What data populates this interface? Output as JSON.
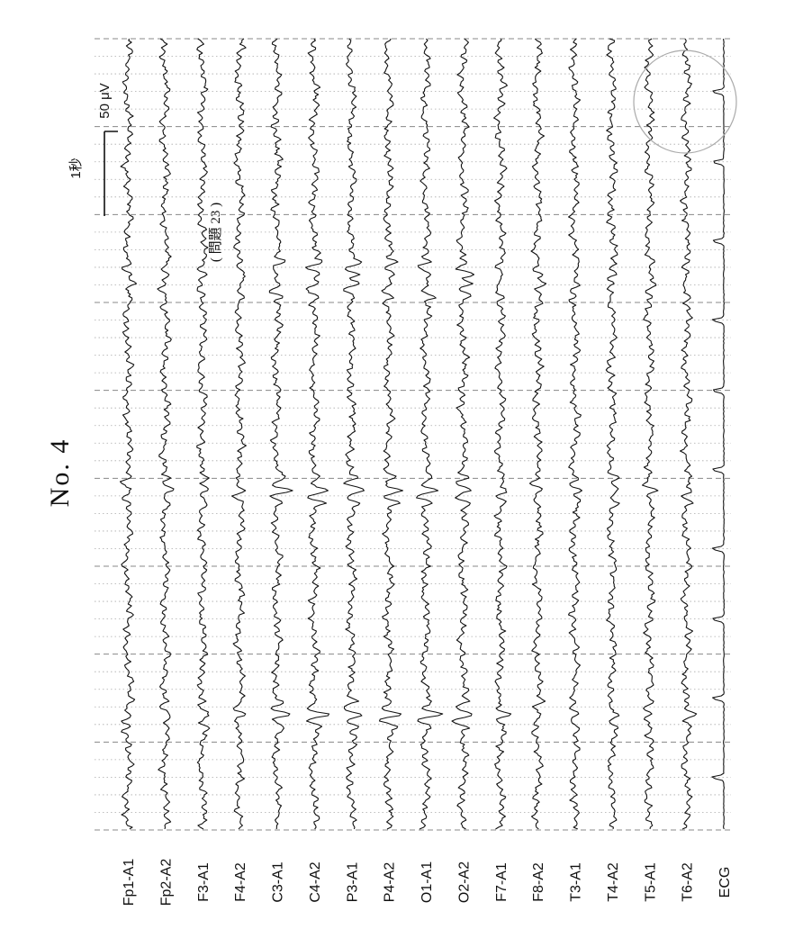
{
  "header": {
    "number_label": "No. 4",
    "problem_label": "( 問題 23 )"
  },
  "scale_bar": {
    "time_label": "1秒",
    "amplitude_label": "50 μV"
  },
  "chart_data": {
    "type": "line",
    "title": "",
    "orientation": "rotated 90° (time runs top to bottom)",
    "x_unit": "s",
    "xlim": [
      0,
      9
    ],
    "y_unit": "μV",
    "major_gridlines_per_second": 1,
    "minor_gridlines_per_second": 5,
    "grid": true,
    "channels": [
      {
        "name": "Fp1-A1",
        "color": "#111111"
      },
      {
        "name": "Fp2-A2",
        "color": "#111111"
      },
      {
        "name": "F3-A1",
        "color": "#111111"
      },
      {
        "name": "F4-A2",
        "color": "#111111"
      },
      {
        "name": "C3-A1",
        "color": "#111111"
      },
      {
        "name": "C4-A2",
        "color": "#111111"
      },
      {
        "name": "P3-A1",
        "color": "#111111"
      },
      {
        "name": "P4-A2",
        "color": "#111111"
      },
      {
        "name": "O1-A1",
        "color": "#111111"
      },
      {
        "name": "O2-A2",
        "color": "#111111"
      },
      {
        "name": "F7-A1",
        "color": "#111111"
      },
      {
        "name": "F8-A2",
        "color": "#111111"
      },
      {
        "name": "T3-A1",
        "color": "#111111"
      },
      {
        "name": "T4-A2",
        "color": "#111111"
      },
      {
        "name": "T5-A1",
        "color": "#111111"
      },
      {
        "name": "T6-A2",
        "color": "#111111"
      },
      {
        "name": "ECG",
        "color": "#111111"
      }
    ],
    "ecg_r_peaks_s": [
      0.6,
      1.4,
      2.3,
      3.2,
      4.0,
      4.9,
      5.8,
      6.6,
      7.5,
      8.4
    ]
  },
  "colors": {
    "trace": "#111111",
    "grid_major": "#888888",
    "grid_minor": "#aaaaaa",
    "marker_circle": "#aaaaaa"
  }
}
